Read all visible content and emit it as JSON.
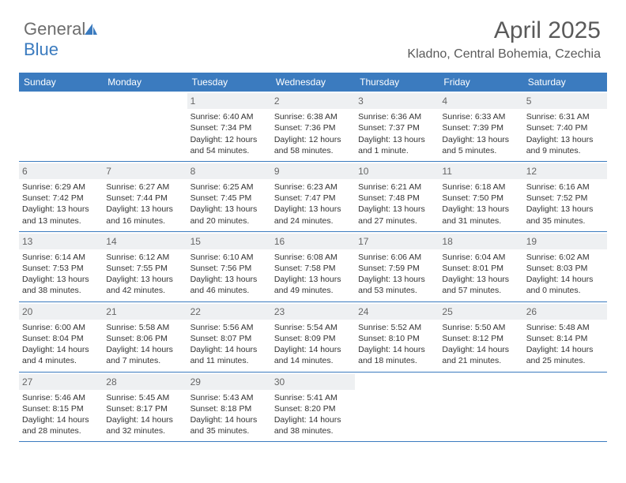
{
  "brand": {
    "word1": "General",
    "word2": "Blue"
  },
  "title": "April 2025",
  "location": "Kladno, Central Bohemia, Czechia",
  "colors": {
    "accent": "#3b7bbf",
    "header_text": "#ffffff",
    "day_num_bg": "#eef0f2",
    "text": "#333333",
    "muted": "#5a5a5a",
    "background": "#ffffff"
  },
  "typography": {
    "title_fontsize": 30,
    "location_fontsize": 16,
    "header_fontsize": 12,
    "cell_fontsize": 10.5,
    "logo_fontsize": 22
  },
  "weekdays": [
    "Sunday",
    "Monday",
    "Tuesday",
    "Wednesday",
    "Thursday",
    "Friday",
    "Saturday"
  ],
  "weeks": [
    [
      {
        "num": "",
        "sunrise": "",
        "sunset": "",
        "daylight": ""
      },
      {
        "num": "",
        "sunrise": "",
        "sunset": "",
        "daylight": ""
      },
      {
        "num": "1",
        "sunrise": "Sunrise: 6:40 AM",
        "sunset": "Sunset: 7:34 PM",
        "daylight": "Daylight: 12 hours and 54 minutes."
      },
      {
        "num": "2",
        "sunrise": "Sunrise: 6:38 AM",
        "sunset": "Sunset: 7:36 PM",
        "daylight": "Daylight: 12 hours and 58 minutes."
      },
      {
        "num": "3",
        "sunrise": "Sunrise: 6:36 AM",
        "sunset": "Sunset: 7:37 PM",
        "daylight": "Daylight: 13 hours and 1 minute."
      },
      {
        "num": "4",
        "sunrise": "Sunrise: 6:33 AM",
        "sunset": "Sunset: 7:39 PM",
        "daylight": "Daylight: 13 hours and 5 minutes."
      },
      {
        "num": "5",
        "sunrise": "Sunrise: 6:31 AM",
        "sunset": "Sunset: 7:40 PM",
        "daylight": "Daylight: 13 hours and 9 minutes."
      }
    ],
    [
      {
        "num": "6",
        "sunrise": "Sunrise: 6:29 AM",
        "sunset": "Sunset: 7:42 PM",
        "daylight": "Daylight: 13 hours and 13 minutes."
      },
      {
        "num": "7",
        "sunrise": "Sunrise: 6:27 AM",
        "sunset": "Sunset: 7:44 PM",
        "daylight": "Daylight: 13 hours and 16 minutes."
      },
      {
        "num": "8",
        "sunrise": "Sunrise: 6:25 AM",
        "sunset": "Sunset: 7:45 PM",
        "daylight": "Daylight: 13 hours and 20 minutes."
      },
      {
        "num": "9",
        "sunrise": "Sunrise: 6:23 AM",
        "sunset": "Sunset: 7:47 PM",
        "daylight": "Daylight: 13 hours and 24 minutes."
      },
      {
        "num": "10",
        "sunrise": "Sunrise: 6:21 AM",
        "sunset": "Sunset: 7:48 PM",
        "daylight": "Daylight: 13 hours and 27 minutes."
      },
      {
        "num": "11",
        "sunrise": "Sunrise: 6:18 AM",
        "sunset": "Sunset: 7:50 PM",
        "daylight": "Daylight: 13 hours and 31 minutes."
      },
      {
        "num": "12",
        "sunrise": "Sunrise: 6:16 AM",
        "sunset": "Sunset: 7:52 PM",
        "daylight": "Daylight: 13 hours and 35 minutes."
      }
    ],
    [
      {
        "num": "13",
        "sunrise": "Sunrise: 6:14 AM",
        "sunset": "Sunset: 7:53 PM",
        "daylight": "Daylight: 13 hours and 38 minutes."
      },
      {
        "num": "14",
        "sunrise": "Sunrise: 6:12 AM",
        "sunset": "Sunset: 7:55 PM",
        "daylight": "Daylight: 13 hours and 42 minutes."
      },
      {
        "num": "15",
        "sunrise": "Sunrise: 6:10 AM",
        "sunset": "Sunset: 7:56 PM",
        "daylight": "Daylight: 13 hours and 46 minutes."
      },
      {
        "num": "16",
        "sunrise": "Sunrise: 6:08 AM",
        "sunset": "Sunset: 7:58 PM",
        "daylight": "Daylight: 13 hours and 49 minutes."
      },
      {
        "num": "17",
        "sunrise": "Sunrise: 6:06 AM",
        "sunset": "Sunset: 7:59 PM",
        "daylight": "Daylight: 13 hours and 53 minutes."
      },
      {
        "num": "18",
        "sunrise": "Sunrise: 6:04 AM",
        "sunset": "Sunset: 8:01 PM",
        "daylight": "Daylight: 13 hours and 57 minutes."
      },
      {
        "num": "19",
        "sunrise": "Sunrise: 6:02 AM",
        "sunset": "Sunset: 8:03 PM",
        "daylight": "Daylight: 14 hours and 0 minutes."
      }
    ],
    [
      {
        "num": "20",
        "sunrise": "Sunrise: 6:00 AM",
        "sunset": "Sunset: 8:04 PM",
        "daylight": "Daylight: 14 hours and 4 minutes."
      },
      {
        "num": "21",
        "sunrise": "Sunrise: 5:58 AM",
        "sunset": "Sunset: 8:06 PM",
        "daylight": "Daylight: 14 hours and 7 minutes."
      },
      {
        "num": "22",
        "sunrise": "Sunrise: 5:56 AM",
        "sunset": "Sunset: 8:07 PM",
        "daylight": "Daylight: 14 hours and 11 minutes."
      },
      {
        "num": "23",
        "sunrise": "Sunrise: 5:54 AM",
        "sunset": "Sunset: 8:09 PM",
        "daylight": "Daylight: 14 hours and 14 minutes."
      },
      {
        "num": "24",
        "sunrise": "Sunrise: 5:52 AM",
        "sunset": "Sunset: 8:10 PM",
        "daylight": "Daylight: 14 hours and 18 minutes."
      },
      {
        "num": "25",
        "sunrise": "Sunrise: 5:50 AM",
        "sunset": "Sunset: 8:12 PM",
        "daylight": "Daylight: 14 hours and 21 minutes."
      },
      {
        "num": "26",
        "sunrise": "Sunrise: 5:48 AM",
        "sunset": "Sunset: 8:14 PM",
        "daylight": "Daylight: 14 hours and 25 minutes."
      }
    ],
    [
      {
        "num": "27",
        "sunrise": "Sunrise: 5:46 AM",
        "sunset": "Sunset: 8:15 PM",
        "daylight": "Daylight: 14 hours and 28 minutes."
      },
      {
        "num": "28",
        "sunrise": "Sunrise: 5:45 AM",
        "sunset": "Sunset: 8:17 PM",
        "daylight": "Daylight: 14 hours and 32 minutes."
      },
      {
        "num": "29",
        "sunrise": "Sunrise: 5:43 AM",
        "sunset": "Sunset: 8:18 PM",
        "daylight": "Daylight: 14 hours and 35 minutes."
      },
      {
        "num": "30",
        "sunrise": "Sunrise: 5:41 AM",
        "sunset": "Sunset: 8:20 PM",
        "daylight": "Daylight: 14 hours and 38 minutes."
      },
      {
        "num": "",
        "sunrise": "",
        "sunset": "",
        "daylight": ""
      },
      {
        "num": "",
        "sunrise": "",
        "sunset": "",
        "daylight": ""
      },
      {
        "num": "",
        "sunrise": "",
        "sunset": "",
        "daylight": ""
      }
    ]
  ]
}
